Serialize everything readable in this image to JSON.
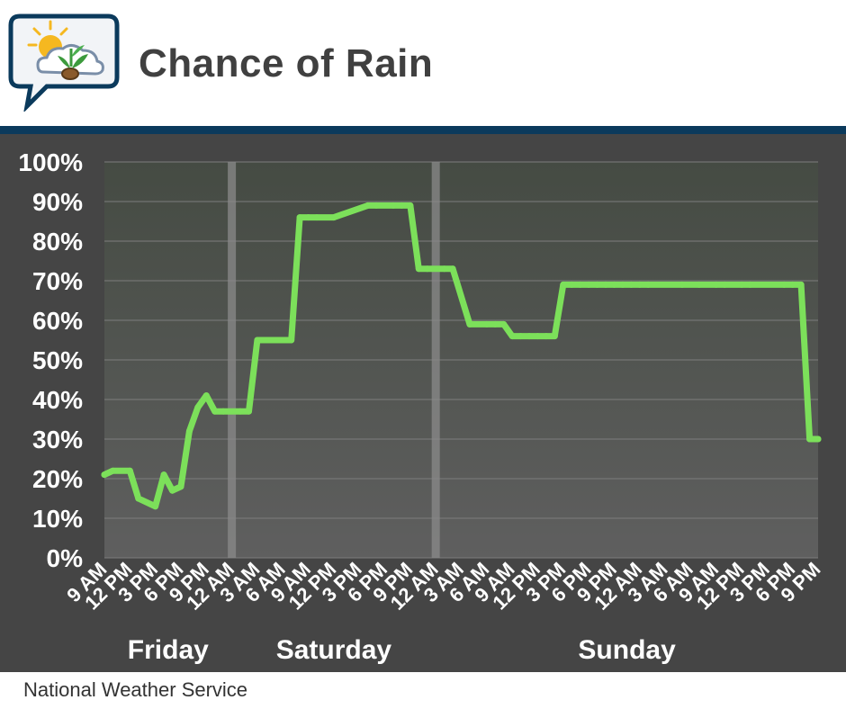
{
  "header": {
    "title": "Chance of Rain",
    "logo_icon": "weather-sun-cloud-plant-icon"
  },
  "footer": {
    "source": "National Weather Service"
  },
  "colors": {
    "line": "#7ce05a",
    "panel": "#454545",
    "band": "#0b3a5c",
    "title": "#404040"
  },
  "chart_data": {
    "type": "line",
    "title": "Chance of Rain",
    "ylim": [
      0,
      100
    ],
    "y_ticks": [
      0,
      10,
      20,
      30,
      40,
      50,
      60,
      70,
      80,
      90,
      100
    ],
    "y_tick_labels": [
      "0%",
      "10%",
      "20%",
      "30%",
      "40%",
      "50%",
      "60%",
      "70%",
      "80%",
      "90%",
      "100%"
    ],
    "x_range_hours": [
      9,
      93
    ],
    "x_tick_hours": [
      9,
      12,
      15,
      18,
      21,
      24,
      27,
      30,
      33,
      36,
      39,
      42,
      45,
      48,
      51,
      54,
      57,
      60,
      63,
      66,
      69,
      72,
      75,
      78,
      81,
      84,
      87,
      90,
      93
    ],
    "x_tick_labels": [
      "9 AM",
      "12 PM",
      "3 PM",
      "6 PM",
      "9 PM",
      "12 AM",
      "3 AM",
      "6 AM",
      "9 AM",
      "12 PM",
      "3 PM",
      "6 PM",
      "9 PM",
      "12 AM",
      "3 AM",
      "6 AM",
      "9 AM",
      "12 PM",
      "3 PM",
      "6 PM",
      "9 PM",
      "12 AM",
      "3 AM",
      "6 AM",
      "9 AM",
      "12 PM",
      "3 PM",
      "6 PM",
      "9 PM"
    ],
    "day_dividers_hours": [
      24,
      48
    ],
    "days": [
      {
        "label": "Friday",
        "start": 9,
        "end": 24
      },
      {
        "label": "Saturday",
        "start": 24,
        "end": 48
      },
      {
        "label": "Sunday",
        "start": 48,
        "end": 93
      }
    ],
    "grid": true,
    "series": [
      {
        "x": [
          9,
          10,
          12,
          13,
          15,
          16,
          17,
          18,
          19,
          20,
          21,
          22,
          23,
          25,
          26,
          27,
          28,
          31,
          32,
          33,
          34,
          36,
          40,
          41,
          43,
          44,
          45,
          46,
          47,
          49,
          50,
          52,
          54,
          55,
          56,
          57,
          58,
          59,
          60,
          61,
          62,
          63,
          64,
          65,
          66,
          67,
          68,
          69,
          70,
          71,
          72,
          73,
          77,
          79,
          81,
          82,
          84,
          85,
          89,
          90,
          91,
          92,
          93
        ],
        "y": [
          21,
          22,
          22,
          15,
          13,
          21,
          17,
          18,
          32,
          38,
          41,
          37,
          37,
          37,
          37,
          55,
          55,
          55,
          86,
          86,
          86,
          86,
          89,
          89,
          89,
          89,
          89,
          73,
          73,
          73,
          73,
          59,
          59,
          59,
          59,
          56,
          56,
          56,
          56,
          56,
          56,
          69,
          69,
          69,
          69,
          69,
          69,
          69,
          69,
          69,
          69,
          69,
          69,
          69,
          69,
          69,
          69,
          69,
          69,
          69,
          69,
          30,
          30
        ]
      }
    ]
  }
}
